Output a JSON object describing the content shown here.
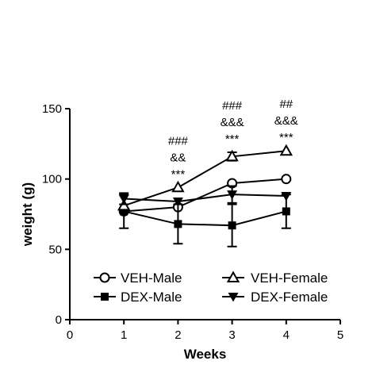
{
  "chart_data": {
    "type": "line",
    "title": "",
    "xlabel": "Weeks",
    "ylabel": "weight (g)",
    "xlim": [
      0,
      5
    ],
    "ylim": [
      0,
      150
    ],
    "xticks": [
      0,
      1,
      2,
      3,
      4,
      5
    ],
    "yticks": [
      0,
      50,
      100,
      150
    ],
    "grid": false,
    "legend_position": "bottom",
    "x": [
      1,
      2,
      3,
      4
    ],
    "series": [
      {
        "name": "VEH-Male",
        "marker": "circle-open",
        "values": [
          77,
          80,
          97,
          100
        ],
        "errors": [
          0,
          0,
          0,
          0
        ]
      },
      {
        "name": "DEX-Male",
        "marker": "square-filled",
        "values": [
          77,
          68,
          67,
          77
        ],
        "errors": [
          12,
          14,
          15,
          12
        ]
      },
      {
        "name": "VEH-Female",
        "marker": "triangle-up-open",
        "values": [
          81,
          94,
          116,
          120
        ],
        "errors": [
          0,
          0,
          3,
          0
        ]
      },
      {
        "name": "DEX-Female",
        "marker": "triangle-down-filled",
        "values": [
          86,
          84,
          89,
          88
        ],
        "errors": [
          4,
          0,
          6,
          0
        ]
      }
    ],
    "annotations": [
      {
        "x": 2,
        "lines": [
          "###",
          "&&",
          "***"
        ]
      },
      {
        "x": 3,
        "lines": [
          "###",
          "&&&",
          "***"
        ]
      },
      {
        "x": 4,
        "lines": [
          "##",
          "&&&",
          "***"
        ]
      }
    ]
  }
}
